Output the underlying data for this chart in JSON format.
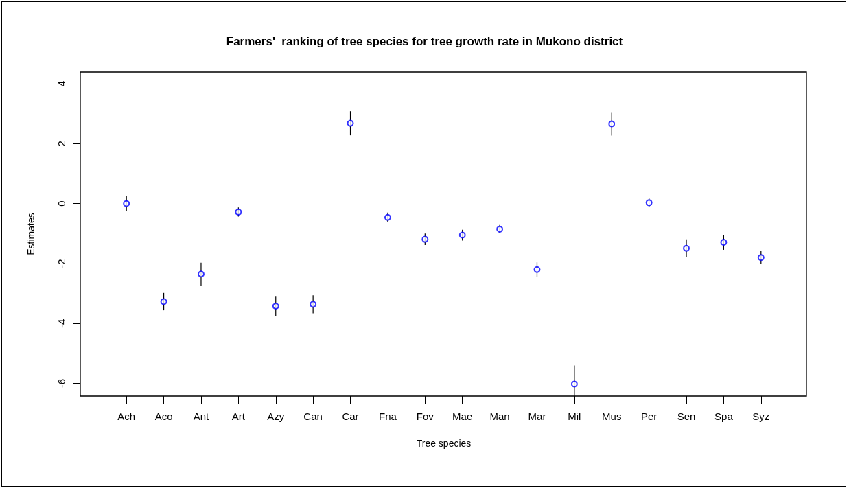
{
  "chart_data": {
    "type": "scatter",
    "title": "Farmers'  ranking of tree species for tree growth rate in Mukono district",
    "xlabel": "Tree species",
    "ylabel": "Estimates",
    "categories": [
      "Ach",
      "Aco",
      "Ant",
      "Art",
      "Azy",
      "Can",
      "Car",
      "Fna",
      "Fov",
      "Mae",
      "Man",
      "Mar",
      "Mil",
      "Mus",
      "Per",
      "Sen",
      "Spa",
      "Syz"
    ],
    "values": [
      0.0,
      -3.27,
      -2.35,
      -0.28,
      -3.42,
      -3.36,
      2.68,
      -0.46,
      -1.19,
      -1.05,
      -0.85,
      -2.2,
      -6.02,
      2.66,
      0.03,
      -1.49,
      -1.29,
      -1.8
    ],
    "errors": [
      0.25,
      0.29,
      0.38,
      0.15,
      0.34,
      0.3,
      0.4,
      0.16,
      0.19,
      0.18,
      0.14,
      0.24,
      [
        -6.42,
        -5.4
      ],
      0.39,
      0.15,
      0.3,
      0.25,
      0.22
    ],
    "color": "#0000ff",
    "marker": "circle",
    "ylim": [
      -6.42,
      4.39
    ],
    "yticks": [
      -6,
      -4,
      -2,
      0,
      2,
      4
    ]
  }
}
